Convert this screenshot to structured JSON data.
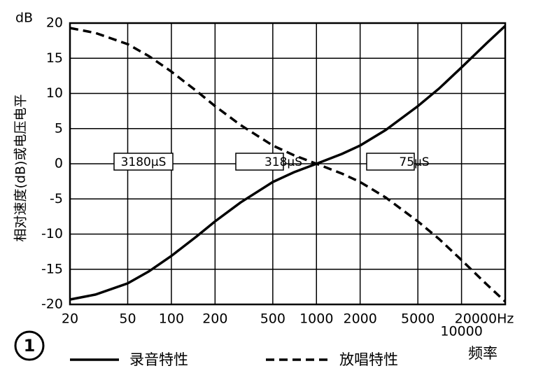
{
  "chart_data": {
    "type": "line",
    "y_unit": "dB",
    "y_label": "相对速度(dB)或电压电平",
    "x_label": "频率",
    "figure_number": "1",
    "log_x": true,
    "grid": true,
    "x": [
      20,
      30,
      50,
      70,
      100,
      150,
      200,
      300,
      500,
      700,
      1000,
      1500,
      2000,
      3000,
      5000,
      7000,
      10000,
      15000,
      20000
    ],
    "series": [
      {
        "name": "录音特性",
        "color": "#000000",
        "dash": "solid",
        "values": [
          -19.3,
          -18.6,
          -17.0,
          -15.3,
          -13.1,
          -10.3,
          -8.2,
          -5.5,
          -2.6,
          -1.2,
          0,
          1.4,
          2.6,
          4.8,
          8.2,
          10.7,
          13.7,
          17.2,
          19.6
        ]
      },
      {
        "name": "放唱特性",
        "color": "#000000",
        "dash": "dashed",
        "values": [
          19.3,
          18.6,
          17.0,
          15.3,
          13.1,
          10.3,
          8.2,
          5.5,
          2.6,
          1.2,
          0,
          -1.4,
          -2.6,
          -4.8,
          -8.2,
          -10.7,
          -13.7,
          -17.2,
          -19.6
        ]
      }
    ],
    "annotations": [
      "3180μS",
      "318μS",
      "75μS"
    ],
    "xlim": [
      20,
      20000
    ],
    "ylim": [
      -20,
      20
    ],
    "xticks": [
      20,
      50,
      100,
      200,
      500,
      1000,
      2000,
      5000,
      10000,
      {
        "value": 20000,
        "label": "20000Hz"
      }
    ],
    "yticks": [
      -20,
      -15,
      -10,
      -5,
      0,
      5,
      10,
      15,
      20
    ]
  }
}
